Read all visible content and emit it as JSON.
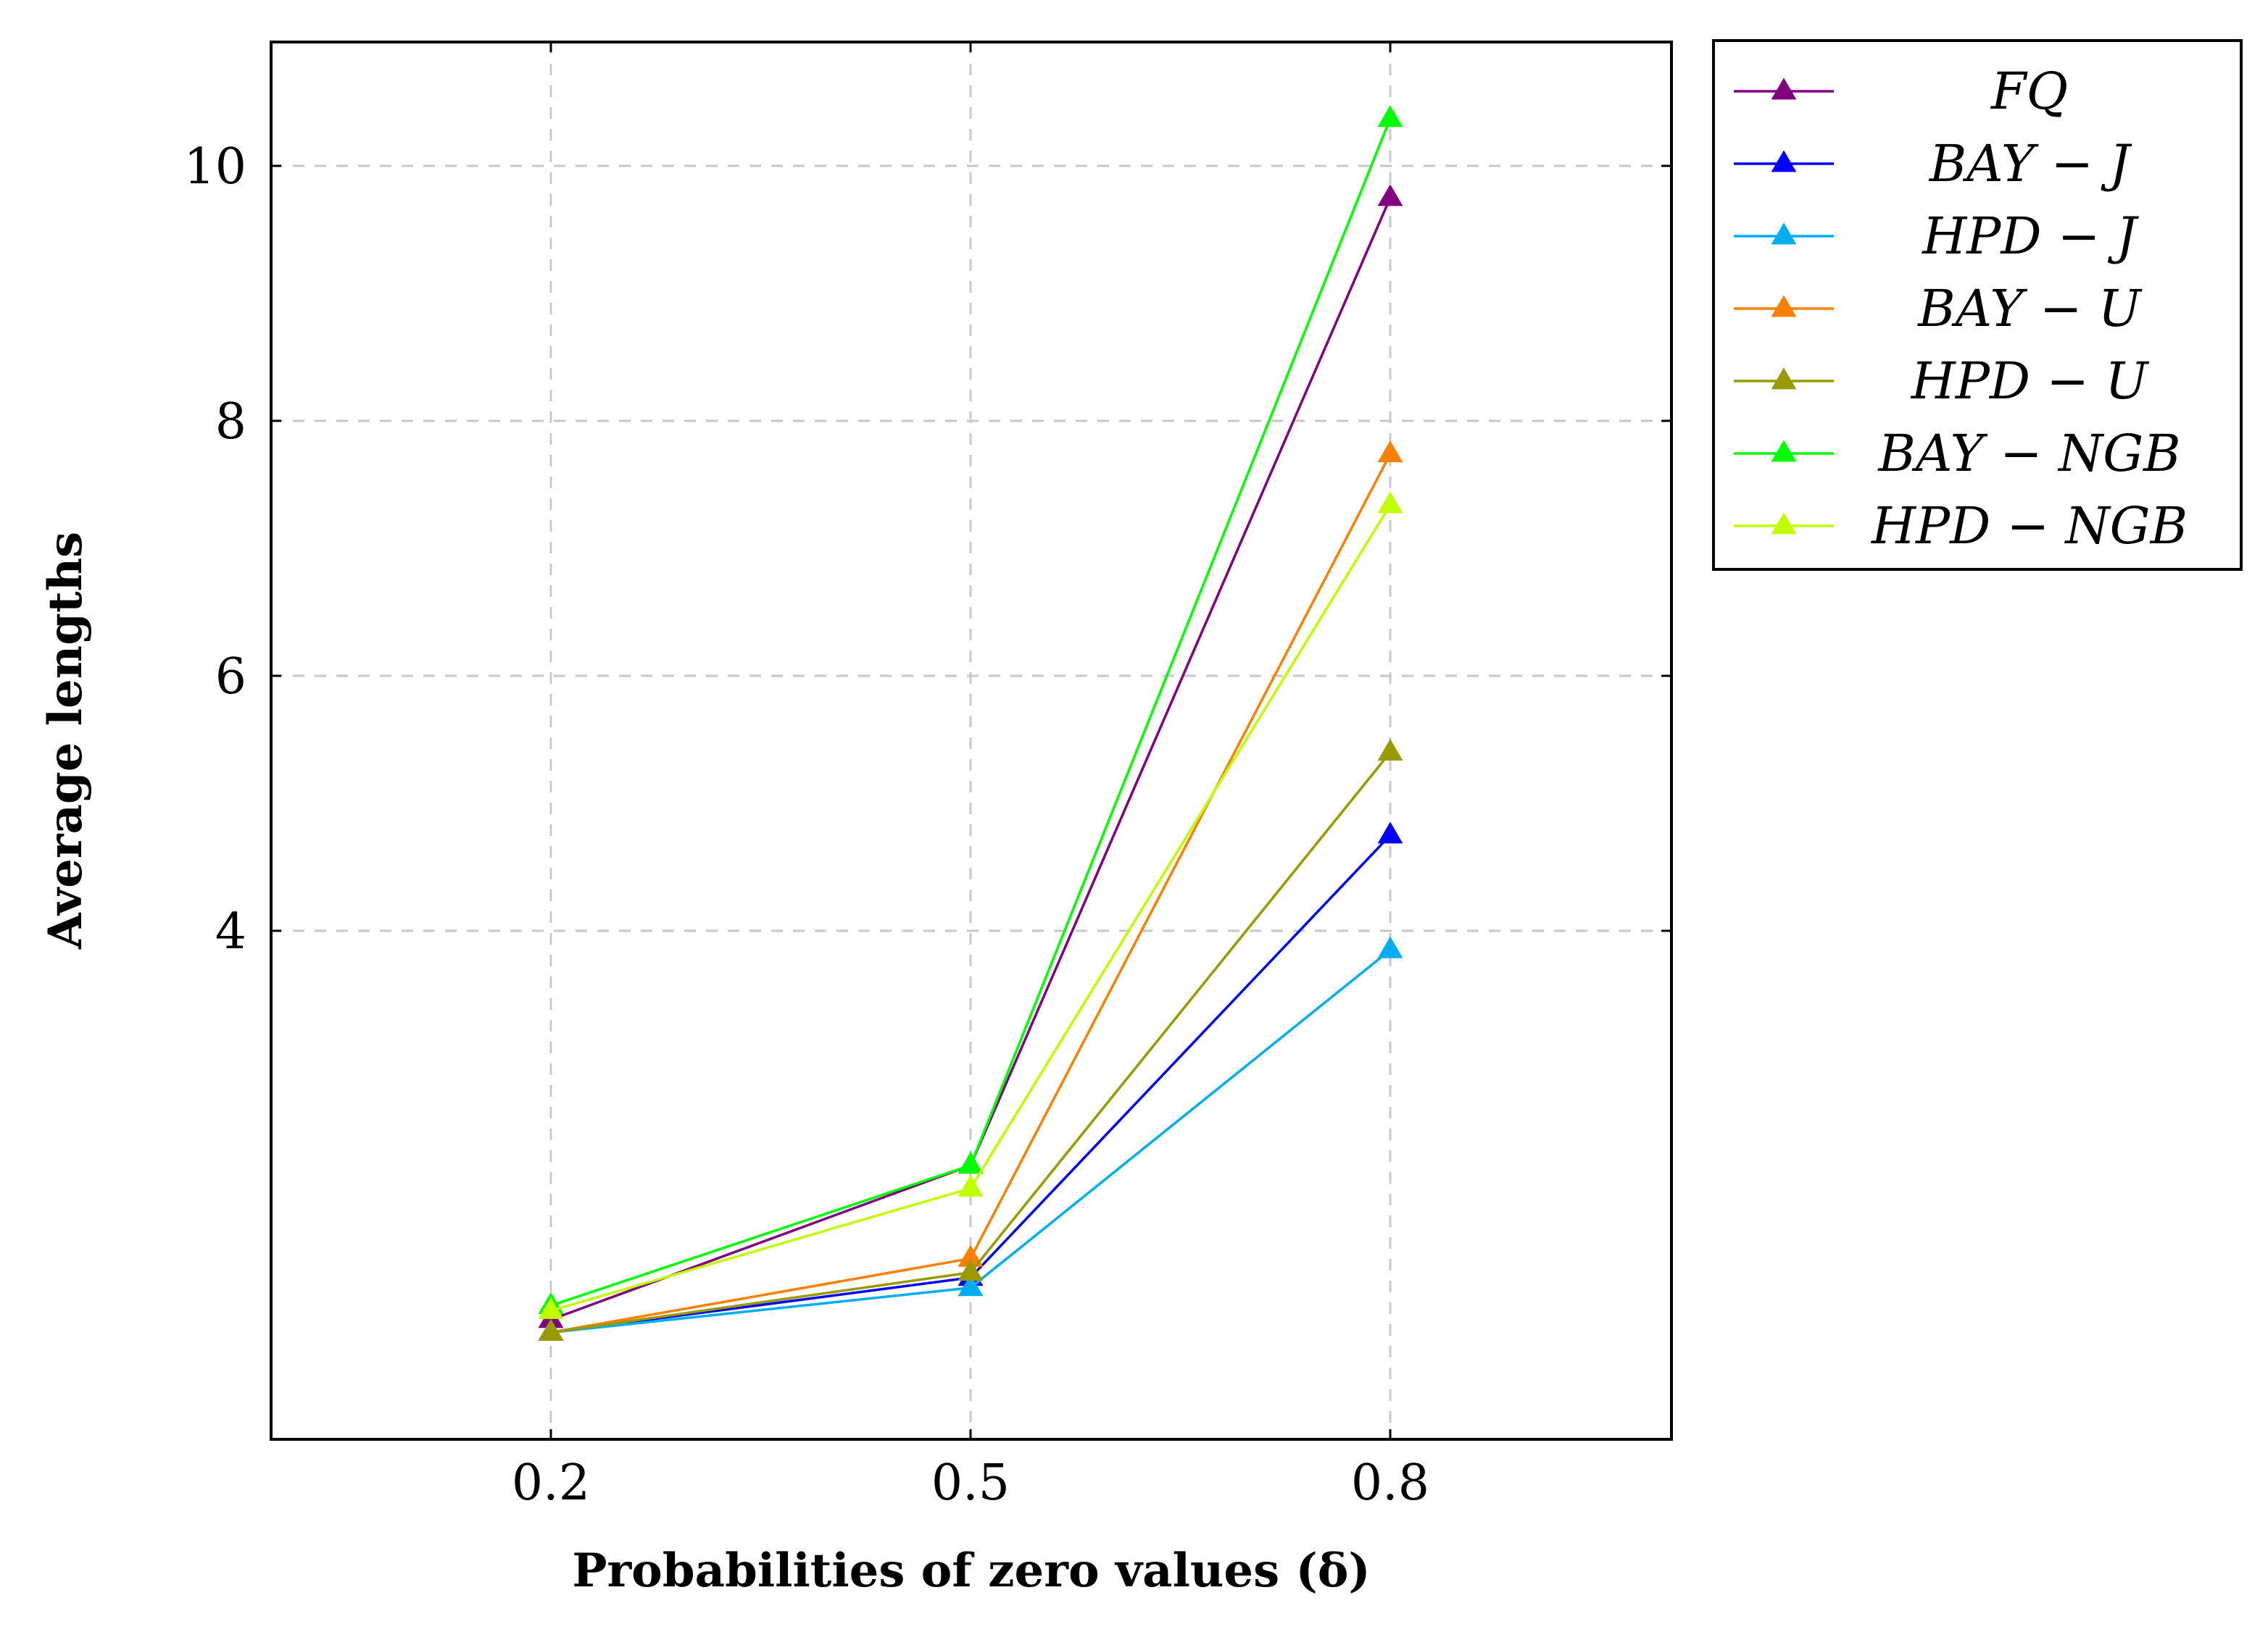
{
  "chart_data": {
    "type": "line",
    "title": "",
    "xlabel": "Probabilities of zero values (δ)",
    "ylabel": "Average lengths",
    "x": [
      0.2,
      0.5,
      0.8
    ],
    "x_tick_labels": [
      "0.2",
      "0.5",
      "0.8"
    ],
    "xlim": [
      0.0,
      1.0
    ],
    "y_ticks": [
      4,
      6,
      8,
      10
    ],
    "y_tick_labels": [
      "4",
      "6",
      "8",
      "10"
    ],
    "ylim": [
      0,
      11
    ],
    "grid": true,
    "legend_position": "outside-top-right",
    "marker": "triangle",
    "series": [
      {
        "name": "FQ",
        "legend": "FQ",
        "color": "#800080",
        "values": [
          0.95,
          2.16,
          9.75
        ]
      },
      {
        "name": "BAY-J",
        "legend": "BAY − J",
        "color": "#0000ff",
        "values": [
          0.85,
          1.28,
          4.75
        ]
      },
      {
        "name": "HPD-J",
        "legend": "HPD − J",
        "color": "#00aeef",
        "values": [
          0.85,
          1.2,
          3.85
        ]
      },
      {
        "name": "BAY-U",
        "legend": "BAY − U",
        "color": "#ff7f00",
        "values": [
          0.85,
          1.43,
          7.74
        ]
      },
      {
        "name": "HPD-U",
        "legend": "HPD − U",
        "color": "#999900",
        "values": [
          0.85,
          1.32,
          5.4
        ]
      },
      {
        "name": "BAY-NGB",
        "legend": "BAY − NGB",
        "color": "#00ff00",
        "values": [
          1.06,
          2.16,
          10.37
        ]
      },
      {
        "name": "HPD-NGB",
        "legend": "HPD − NGB",
        "color": "#bfff00",
        "values": [
          1.02,
          1.98,
          7.34
        ]
      }
    ]
  }
}
